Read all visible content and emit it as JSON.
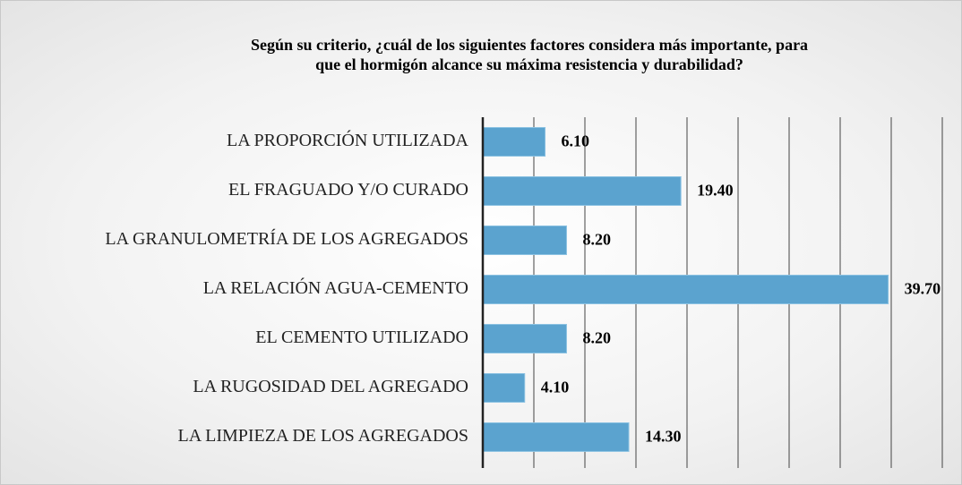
{
  "chart_data": {
    "type": "bar",
    "orientation": "horizontal",
    "title": "Según su criterio, ¿cuál de los siguientes factores considera más importante, para\nque el hormigón alcance su máxima resistencia y durabilidad?",
    "categories": [
      "LA PROPORCIÓN UTILIZADA",
      "EL FRAGUADO Y/O CURADO",
      "LA GRANULOMETRÍA DE LOS AGREGADOS",
      "LA RELACIÓN AGUA-CEMENTO",
      "EL CEMENTO UTILIZADO",
      "LA RUGOSIDAD DEL AGREGADO",
      "LA LIMPIEZA DE LOS AGREGADOS"
    ],
    "values": [
      6.1,
      19.4,
      8.2,
      39.7,
      8.2,
      4.1,
      14.3
    ],
    "value_labels": [
      "6.10",
      "19.40",
      "8.20",
      "39.70",
      "8.20",
      "4.10",
      "14.30"
    ],
    "color": "#5ba3cf",
    "xlim": [
      0,
      45
    ],
    "xticks": [
      0,
      5,
      10,
      15,
      20,
      25,
      30,
      35,
      40,
      45
    ],
    "grid": true
  }
}
